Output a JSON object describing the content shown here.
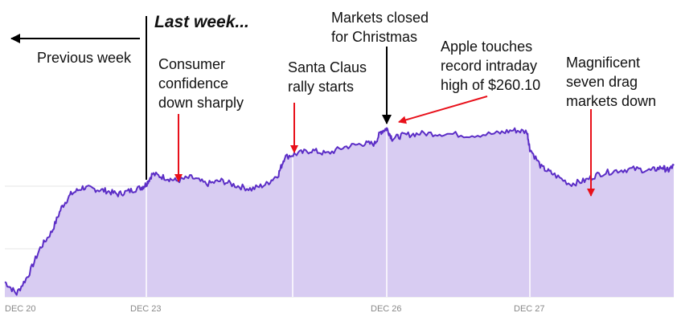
{
  "chart_data": {
    "type": "area",
    "title": "Last week...",
    "x_ticks": [
      "DEC 20",
      "DEC 23",
      "DEC 26",
      "DEC 27"
    ],
    "series": [
      {
        "values": [
          [
            0.0,
            0.08
          ],
          [
            0.25,
            0.01
          ],
          [
            0.5,
            0.12
          ],
          [
            0.75,
            0.28
          ],
          [
            1.0,
            0.38
          ],
          [
            1.2,
            0.52
          ],
          [
            1.4,
            0.6
          ],
          [
            1.65,
            0.64
          ],
          [
            1.9,
            0.63
          ],
          [
            2.15,
            0.62
          ],
          [
            2.4,
            0.6
          ],
          [
            2.65,
            0.62
          ],
          [
            2.9,
            0.64
          ],
          [
            3.0,
            0.66
          ],
          [
            3.1,
            0.72
          ],
          [
            3.3,
            0.7
          ],
          [
            3.5,
            0.68
          ],
          [
            3.75,
            0.7
          ],
          [
            4.0,
            0.66
          ],
          [
            4.25,
            0.68
          ],
          [
            4.5,
            0.65
          ],
          [
            4.75,
            0.63
          ],
          [
            5.0,
            0.66
          ],
          [
            5.2,
            0.72
          ],
          [
            5.3,
            0.82
          ],
          [
            5.5,
            0.84
          ],
          [
            5.75,
            0.86
          ],
          [
            6.0,
            0.84
          ],
          [
            6.3,
            0.88
          ],
          [
            6.6,
            0.9
          ],
          [
            6.8,
            0.9
          ],
          [
            6.9,
            0.97
          ],
          [
            7.0,
            0.99
          ],
          [
            7.1,
            0.93
          ],
          [
            7.3,
            0.95
          ],
          [
            7.6,
            0.96
          ],
          [
            8.0,
            0.96
          ],
          [
            8.5,
            0.95
          ],
          [
            9.0,
            0.96
          ],
          [
            9.3,
            0.98
          ],
          [
            9.55,
            0.97
          ],
          [
            9.6,
            0.87
          ],
          [
            9.8,
            0.76
          ],
          [
            10.0,
            0.72
          ],
          [
            10.3,
            0.66
          ],
          [
            10.55,
            0.68
          ],
          [
            10.8,
            0.72
          ],
          [
            11.1,
            0.74
          ],
          [
            11.4,
            0.75
          ],
          [
            11.7,
            0.74
          ],
          [
            11.9,
            0.76
          ],
          [
            12.0,
            0.74
          ],
          [
            12.1,
            0.77
          ]
        ]
      }
    ],
    "annotations": [
      {
        "text": [
          "Previous week"
        ]
      },
      {
        "text": [
          "Consumer",
          "confidence",
          "down sharply"
        ]
      },
      {
        "text": [
          "Santa Claus",
          "rally starts"
        ]
      },
      {
        "text": [
          "Markets closed",
          "for Christmas"
        ]
      },
      {
        "text": [
          "Apple touches",
          "record intraday",
          "high of $260.10"
        ]
      },
      {
        "text": [
          "Magnificent",
          "seven drag",
          "markets down"
        ]
      }
    ],
    "colors": {
      "line": "#5b2dc6",
      "fill": "#d8ccf2",
      "grid": "#e6e6e6",
      "divider": "#ffffff",
      "red_arrow": "#e8101a",
      "black_arrow": "#000000"
    },
    "grid": true
  }
}
